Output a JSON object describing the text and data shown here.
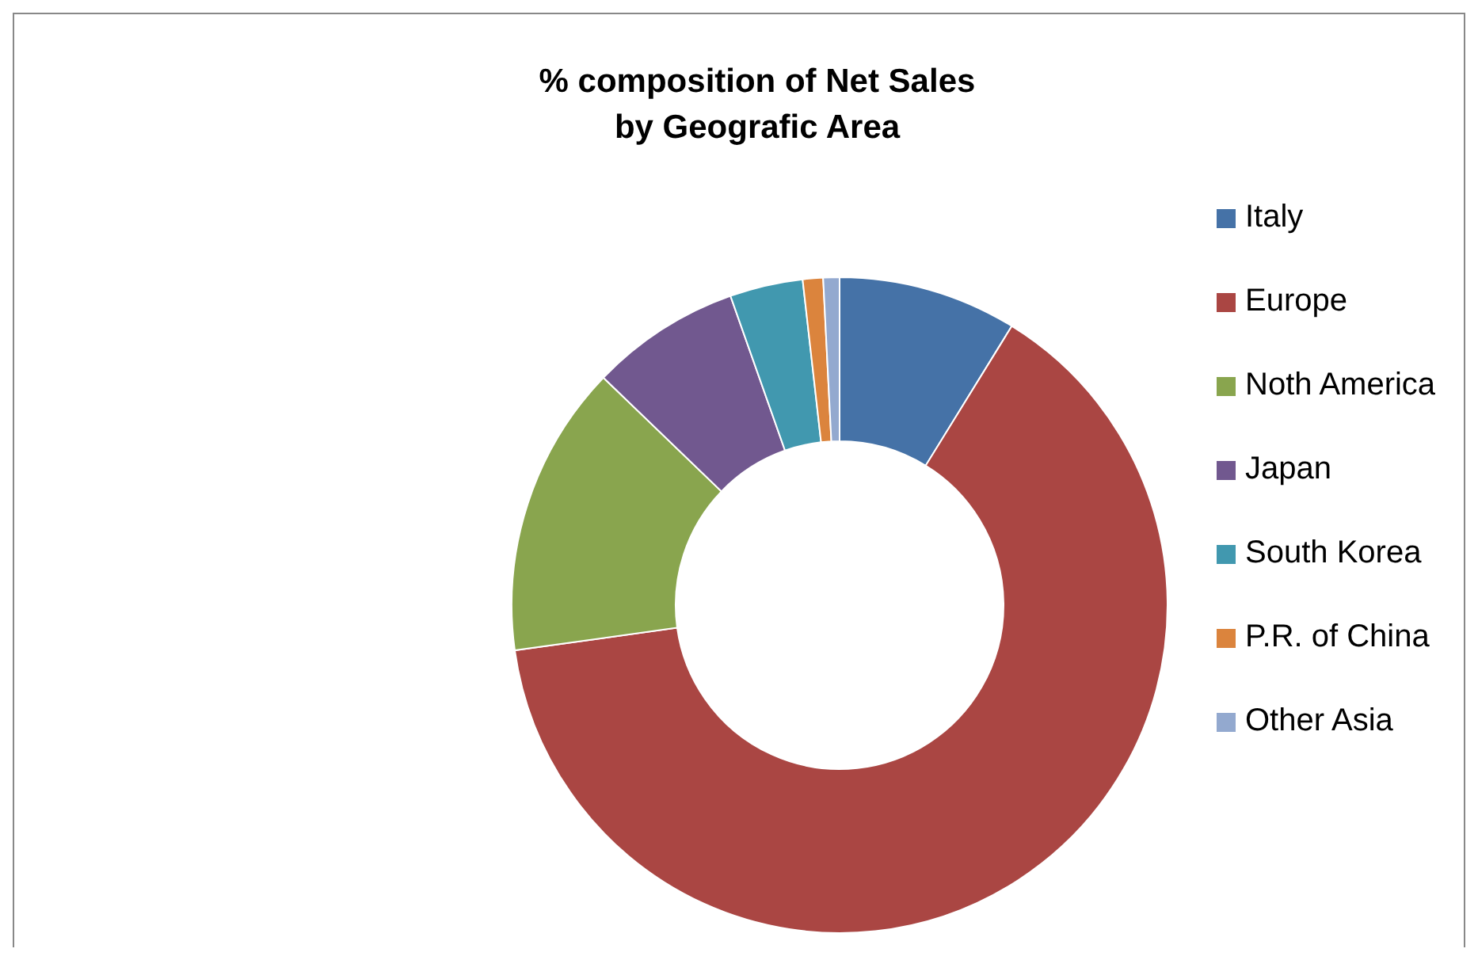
{
  "chart_data": {
    "type": "donut",
    "title": "% composition of Net Sales\nby Geografic Area",
    "categories": [
      "Italy",
      "Europe",
      "Noth America",
      "Japan",
      "South Korea",
      "P.R. of China",
      "Other Asia"
    ],
    "values": [
      8.8,
      64.0,
      14.4,
      7.4,
      3.6,
      1.0,
      0.8
    ],
    "colors": [
      "#4572a7",
      "#aa4643",
      "#89a54e",
      "#71588f",
      "#4198af",
      "#db843d",
      "#93a9cf"
    ],
    "legend": "right"
  }
}
